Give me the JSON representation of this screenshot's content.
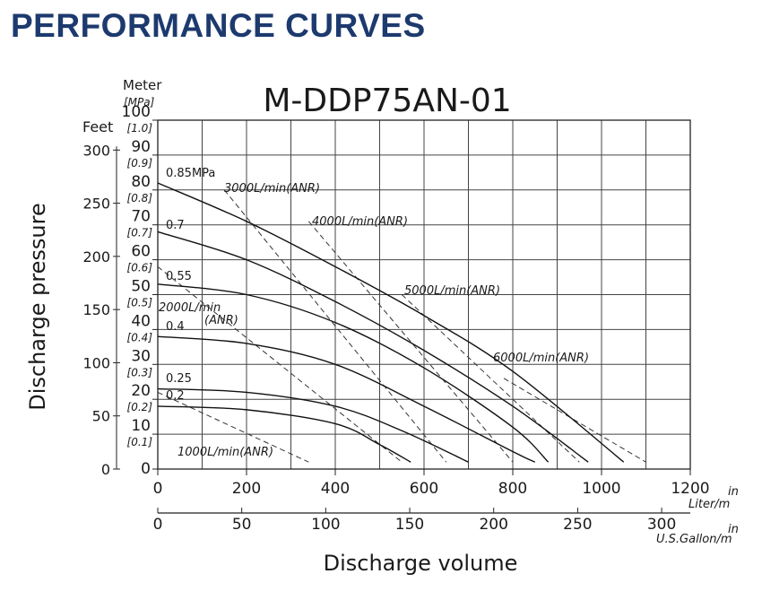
{
  "page": {
    "heading": "PERFORMANCE CURVES"
  },
  "chart_data": {
    "type": "line",
    "title": "M-DDP75AN-01",
    "xlabel": "Discharge volume",
    "ylabel": "Discharge pressure",
    "x_unit_primary": [
      "in",
      "Liter/m"
    ],
    "x_unit_secondary": [
      "in",
      "U.S.Gallon/m"
    ],
    "y_unit_meter": "Meter",
    "y_unit_mpa": "[MPa]",
    "y_unit_feet": "Feet",
    "xlim": [
      0,
      1200
    ],
    "ylim_meter": [
      0,
      100
    ],
    "x_ticks": [
      0,
      200,
      400,
      600,
      800,
      1000,
      1200
    ],
    "x_ticks_gallon": [
      0,
      50,
      100,
      150,
      200,
      250,
      300
    ],
    "y_ticks_meter": [
      0,
      10,
      20,
      30,
      40,
      50,
      60,
      70,
      80,
      90,
      100
    ],
    "y_ticks_mpa": [
      "",
      "[0.1]",
      "[0.2]",
      "[0.3]",
      "[0.4]",
      "[0.5]",
      "[0.6]",
      "[0.7]",
      "[0.8]",
      "[0.9]",
      "[1.0]"
    ],
    "y_ticks_feet": [
      0,
      50,
      100,
      150,
      200,
      250,
      300
    ],
    "series": [
      {
        "name": "0.85MPa",
        "x": [
          0,
          200,
          400,
          600,
          800,
          1050
        ],
        "y": [
          82,
          71,
          58,
          44,
          28,
          2
        ]
      },
      {
        "name": "0.7",
        "x": [
          0,
          200,
          400,
          600,
          800,
          970
        ],
        "y": [
          68,
          60,
          48,
          34,
          18,
          2
        ]
      },
      {
        "name": "0.55",
        "x": [
          0,
          200,
          400,
          600,
          800,
          880
        ],
        "y": [
          53,
          50,
          42,
          29,
          12,
          2
        ]
      },
      {
        "name": "0.4",
        "x": [
          0,
          200,
          400,
          600,
          800,
          850
        ],
        "y": [
          38,
          36,
          30,
          18,
          5,
          2
        ]
      },
      {
        "name": "0.25",
        "x": [
          0,
          200,
          400,
          550,
          700
        ],
        "y": [
          23,
          22,
          18,
          11,
          2
        ]
      },
      {
        "name": "0.2",
        "x": [
          0,
          200,
          400,
          500,
          570
        ],
        "y": [
          18,
          17,
          13,
          7,
          2
        ]
      }
    ],
    "air_lines": [
      {
        "name": "1000L/min(ANR)",
        "x": [
          0,
          340
        ],
        "y": [
          22,
          2
        ]
      },
      {
        "name": "2000L/min(ANR)",
        "x": [
          0,
          550
        ],
        "y": [
          58,
          2
        ]
      },
      {
        "name": "3000L/min(ANR)",
        "x": [
          150,
          650
        ],
        "y": [
          80,
          2
        ]
      },
      {
        "name": "4000L/min(ANR)",
        "x": [
          340,
          800
        ],
        "y": [
          71,
          2
        ]
      },
      {
        "name": "5000L/min(ANR)",
        "x": [
          550,
          950
        ],
        "y": [
          50,
          2
        ]
      },
      {
        "name": "6000L/min(ANR)",
        "x": [
          780,
          1100
        ],
        "y": [
          26,
          2
        ]
      }
    ]
  }
}
